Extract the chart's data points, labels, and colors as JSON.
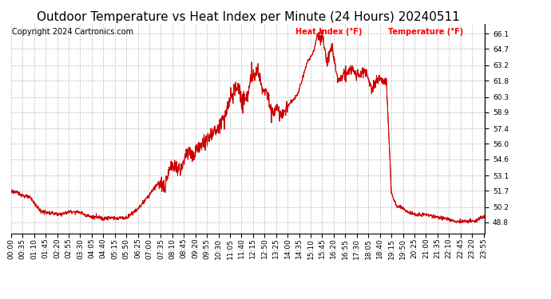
{
  "title": "Outdoor Temperature vs Heat Index per Minute (24 Hours) 20240511",
  "copyright": "Copyright 2024 Cartronics.com",
  "legend_labels": [
    "Heat Index (°F)",
    "Temperature (°F)"
  ],
  "legend_color": "#ff0000",
  "line_color": "#cc0000",
  "background_color": "#ffffff",
  "grid_color": "#bbbbbb",
  "yticks": [
    48.8,
    50.2,
    51.7,
    53.1,
    54.6,
    56.0,
    57.4,
    58.9,
    60.3,
    61.8,
    63.2,
    64.7,
    66.1
  ],
  "ylim": [
    47.8,
    67.0
  ],
  "xtick_interval_minutes": 35,
  "total_minutes": 1440,
  "title_fontsize": 11,
  "tick_fontsize": 6.5,
  "copyright_fontsize": 7
}
